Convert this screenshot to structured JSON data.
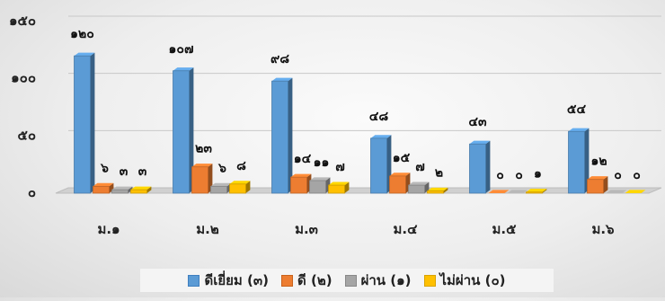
{
  "chart_data": {
    "type": "bar",
    "categories": [
      "ม.๑",
      "ม.๒",
      "ม.๓",
      "ม.๔",
      "ม.๕",
      "ม.๖"
    ],
    "series": [
      {
        "name": "ดีเยี่ยม (๓)",
        "color": "#5b9bd5",
        "values": [
          120,
          107,
          98,
          48,
          43,
          54
        ],
        "labels": [
          "๑๒๐",
          "๑๐๗",
          "๙๘",
          "๔๘",
          "๔๓",
          "๕๔"
        ]
      },
      {
        "name": "ดี (๒)",
        "color": "#ed7d31",
        "values": [
          6,
          23,
          14,
          15,
          0,
          12
        ],
        "labels": [
          "๖",
          "๒๓",
          "๑๔",
          "๑๕",
          "๐",
          "๑๒"
        ]
      },
      {
        "name": "ผ่าน (๑)",
        "color": "#a5a5a5",
        "values": [
          3,
          6,
          11,
          7,
          0,
          0
        ],
        "labels": [
          "๓",
          "๖",
          "๑๑",
          "๗",
          "๐",
          "๐"
        ]
      },
      {
        "name": "ไม่ผ่าน (๐)",
        "color": "#ffc000",
        "values": [
          3,
          8,
          7,
          2,
          1,
          0
        ],
        "labels": [
          "๓",
          "๘",
          "๗",
          "๒",
          "๑",
          "๐"
        ]
      }
    ],
    "yticks": [
      "๐",
      "๕๐",
      "๑๐๐",
      "๑๕๐"
    ],
    "ylim": [
      0,
      150
    ],
    "grid": true,
    "legend_position": "bottom"
  }
}
